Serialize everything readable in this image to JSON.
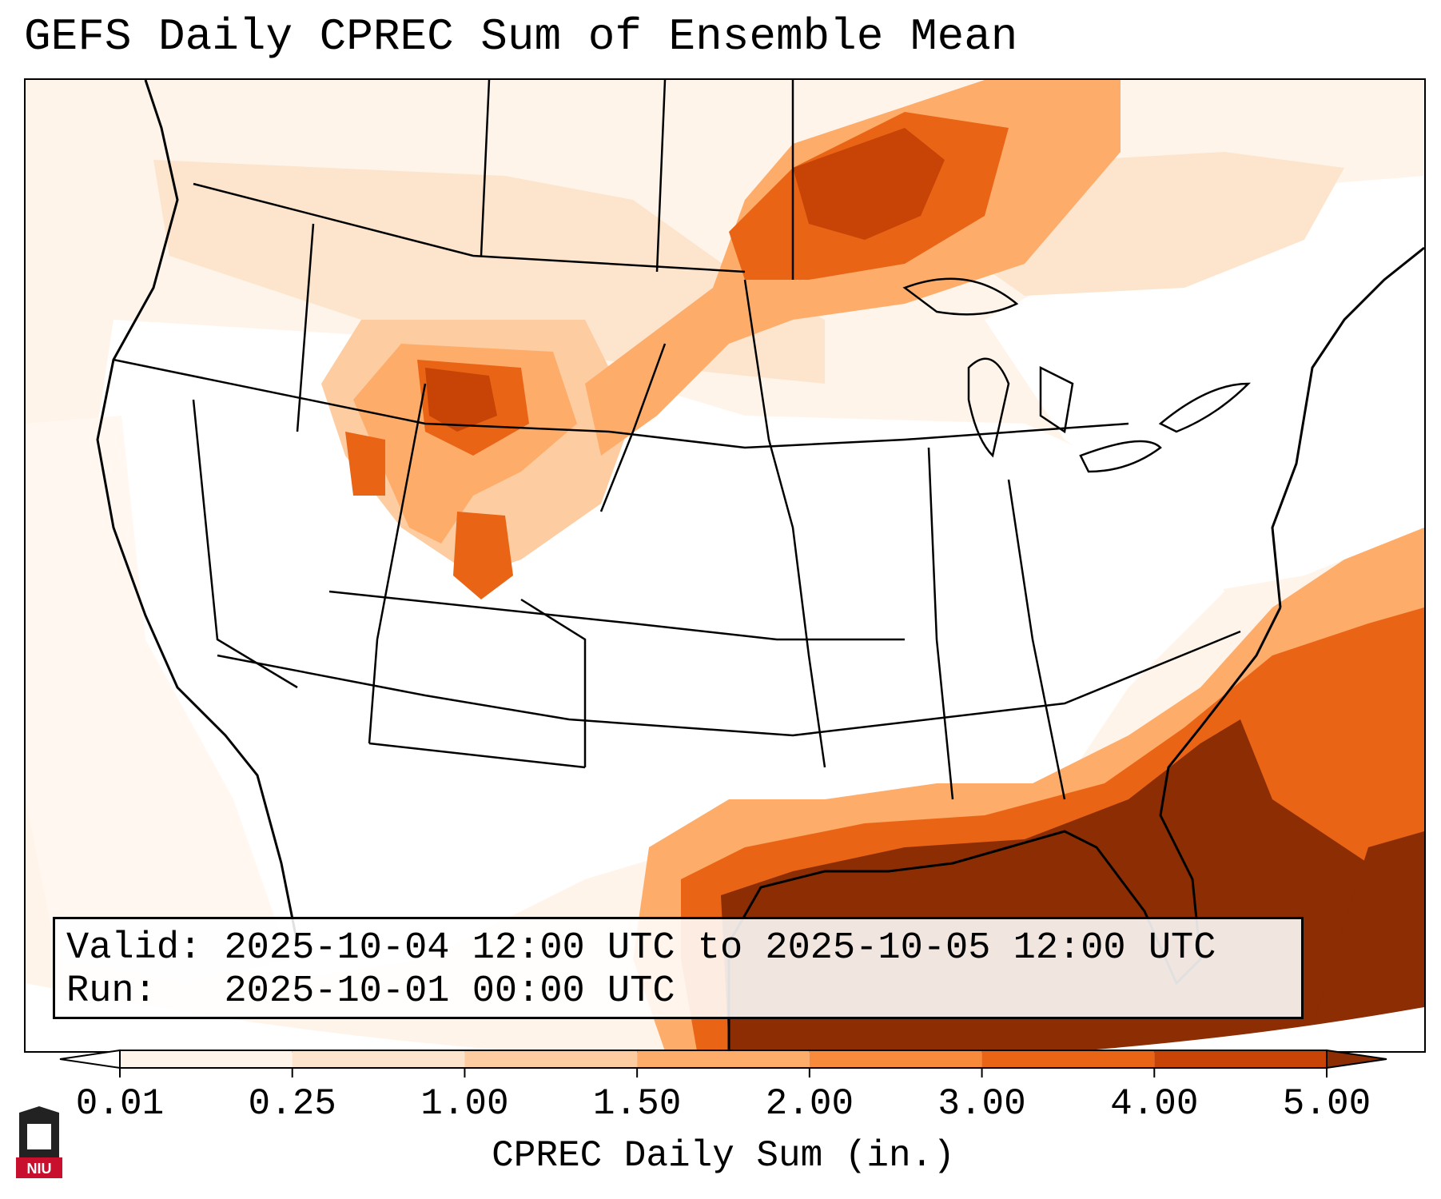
{
  "title": "GEFS Daily CPREC Sum of Ensemble Mean",
  "info_box": {
    "valid_label": "Valid:",
    "valid_value": "2025-10-04 12:00 UTC to 2025-10-05 12:00 UTC",
    "run_label": "Run:",
    "run_value": "2025-10-01 00:00 UTC"
  },
  "colorbar": {
    "label": "CPREC Daily Sum (in.)",
    "ticks": [
      "0.01",
      "0.25",
      "1.00",
      "1.50",
      "2.00",
      "3.00",
      "4.00",
      "5.00"
    ],
    "colors": [
      "#fff4ea",
      "#fde4cd",
      "#fdcca0",
      "#fdac6a",
      "#f88a3c",
      "#ea6416",
      "#c74306",
      "#8c2d04"
    ],
    "extend": "both"
  },
  "map": {
    "projection": "Lambert conformal, CONUS",
    "heavy_precip_regions": [
      "Gulf of Mexico",
      "Florida",
      "Southeast Atlantic coast",
      "Colorado / Wyoming Rockies",
      "Lake Superior region"
    ]
  },
  "logo": {
    "text": "NIU",
    "colors": {
      "red": "#c8102e",
      "dark": "#222222"
    }
  }
}
